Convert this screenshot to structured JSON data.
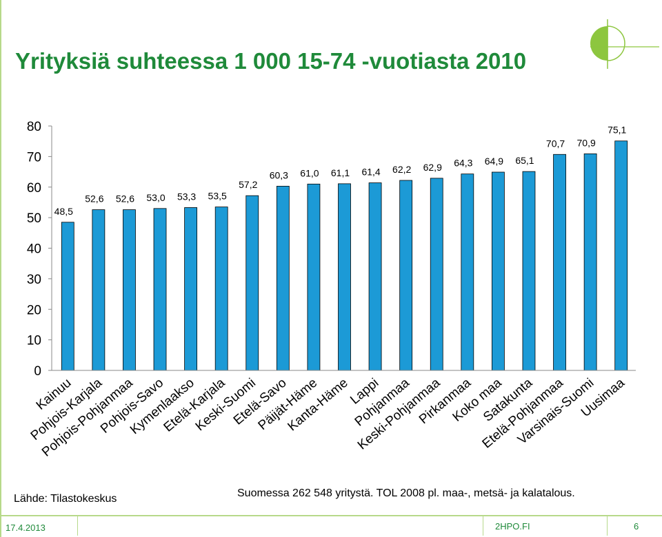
{
  "title": "Yrityksiä suhteessa 1 000 15-74 -vuotiasta 2010",
  "source": "Lähde: Tilastokeskus",
  "note": "Suomessa 262 548 yritystä. TOL 2008 pl. maa-, metsä- ja kalatalous.",
  "footer": {
    "date": "17.4.2013",
    "site": "2HPO.FI",
    "page": "6"
  },
  "colors": {
    "bar_fill": "#1c9ad6",
    "bar_stroke": "#000000",
    "title": "#1f8a3a",
    "accent": "#b7d98a"
  },
  "chart_data": {
    "type": "bar",
    "title": "Yrityksiä suhteessa 1 000 15-74 -vuotiasta 2010",
    "xlabel": "",
    "ylabel": "",
    "ylim": [
      0,
      80
    ],
    "yticks": [
      0,
      10,
      20,
      30,
      40,
      50,
      60,
      70,
      80
    ],
    "grid": false,
    "legend": "none",
    "categories": [
      "Kainuu",
      "Pohjois-Karjala",
      "Pohjois-Pohjanmaa",
      "Pohjois-Savo",
      "Kymenlaakso",
      "Etelä-Karjala",
      "Keski-Suomi",
      "Etelä-Savo",
      "Päijät-Häme",
      "Kanta-Häme",
      "Lappi",
      "Pohjanmaa",
      "Keski-Pohjanmaa",
      "Pirkanmaa",
      "Koko maa",
      "Satakunta",
      "Etelä-Pohjanmaa",
      "Varsinais-Suomi",
      "Uusimaa"
    ],
    "values": [
      48.5,
      52.6,
      52.6,
      53.0,
      53.3,
      53.5,
      57.2,
      60.3,
      61.0,
      61.1,
      61.4,
      62.2,
      62.9,
      64.3,
      64.9,
      65.1,
      70.7,
      70.9,
      75.1
    ],
    "value_labels": [
      "48,5",
      "52,6",
      "52,6",
      "53,0",
      "53,3",
      "53,5",
      "57,2",
      "60,3",
      "61,0",
      "61,1",
      "61,4",
      "62,2",
      "62,9",
      "64,3",
      "64,9",
      "65,1",
      "70,7",
      "70,9",
      "75,1"
    ]
  }
}
